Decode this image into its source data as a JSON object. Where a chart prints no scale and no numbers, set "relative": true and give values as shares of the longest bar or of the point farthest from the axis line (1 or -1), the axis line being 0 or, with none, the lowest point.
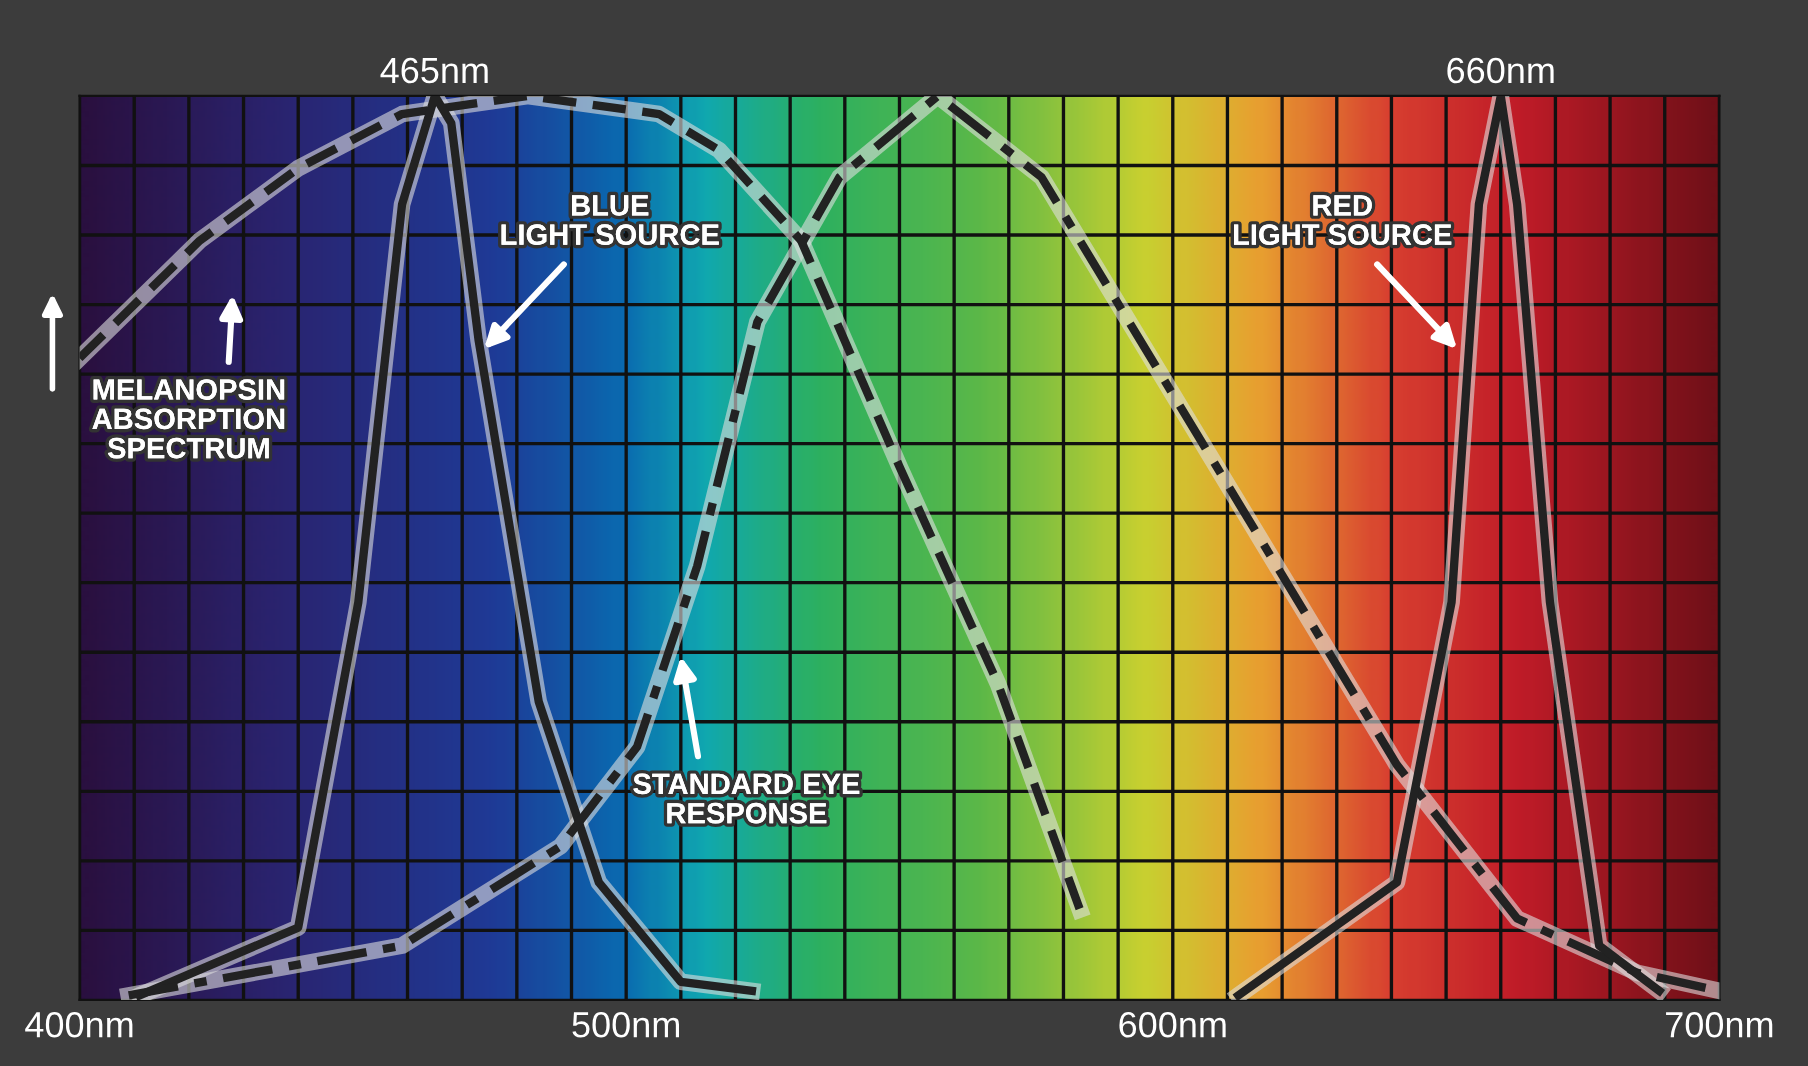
{
  "chart_data": {
    "type": "line",
    "relative": true,
    "xlim": [
      400,
      700
    ],
    "xticks": [
      {
        "value": 400,
        "label": "400nm"
      },
      {
        "value": 410,
        "label": null
      },
      {
        "value": 420,
        "label": null
      },
      {
        "value": 430,
        "label": null
      },
      {
        "value": 440,
        "label": null
      },
      {
        "value": 450,
        "label": null
      },
      {
        "value": 460,
        "label": null
      },
      {
        "value": 470,
        "label": null
      },
      {
        "value": 480,
        "label": null
      },
      {
        "value": 490,
        "label": null
      },
      {
        "value": 500,
        "label": "500nm"
      },
      {
        "value": 510,
        "label": null
      },
      {
        "value": 520,
        "label": null
      },
      {
        "value": 530,
        "label": null
      },
      {
        "value": 540,
        "label": null
      },
      {
        "value": 550,
        "label": null
      },
      {
        "value": 560,
        "label": null
      },
      {
        "value": 570,
        "label": null
      },
      {
        "value": 580,
        "label": null
      },
      {
        "value": 590,
        "label": null
      },
      {
        "value": 600,
        "label": "600nm"
      },
      {
        "value": 610,
        "label": null
      },
      {
        "value": 620,
        "label": null
      },
      {
        "value": 630,
        "label": null
      },
      {
        "value": 640,
        "label": null
      },
      {
        "value": 650,
        "label": null
      },
      {
        "value": 660,
        "label": null
      },
      {
        "value": 670,
        "label": null
      },
      {
        "value": 680,
        "label": null
      },
      {
        "value": 690,
        "label": null
      },
      {
        "value": 700,
        "label": "700nm"
      }
    ],
    "x2lim": [
      400,
      700
    ],
    "x2ticks": [
      {
        "value": 465,
        "label": "465nm"
      },
      {
        "value": 660,
        "label": "660nm"
      }
    ],
    "grid": true,
    "legend": false,
    "series": [
      {
        "name": "MELANOPSIN\nABSORPTION\nSPECTRUM",
        "color": "#222222",
        "line_style": "dashed",
        "x": [
          400,
          422,
          440,
          459,
          482,
          506,
          517,
          532,
          550,
          568,
          583
        ],
        "values": [
          0.71,
          0.84,
          0.92,
          0.98,
          1.0,
          0.98,
          0.94,
          0.84,
          0.59,
          0.35,
          0.1
        ]
      },
      {
        "name": "BLUE\nLIGHT SOURCE",
        "color": "#222222",
        "line_style": "solid",
        "x": [
          411,
          440,
          451,
          459,
          465,
          468,
          473,
          484,
          495,
          510,
          523
        ],
        "values": [
          0.005,
          0.08,
          0.44,
          0.88,
          1.0,
          0.97,
          0.73,
          0.33,
          0.13,
          0.02,
          0.01
        ]
      },
      {
        "name": "STANDARD EYE\nRESPONSE",
        "color": "#222222",
        "line_style": "dashdot",
        "x": [
          409,
          459,
          488,
          502,
          513,
          524,
          539,
          557,
          576,
          605,
          623,
          641,
          663,
          685,
          700
        ],
        "values": [
          0.005,
          0.06,
          0.17,
          0.28,
          0.48,
          0.75,
          0.91,
          1.0,
          0.91,
          0.62,
          0.44,
          0.26,
          0.09,
          0.03,
          0.01
        ]
      },
      {
        "name": "RED\nLIGHT SOURCE",
        "color": "#222222",
        "line_style": "solid",
        "x": [
          612,
          641,
          651,
          656,
          660,
          663,
          669,
          678,
          689
        ],
        "values": [
          0.005,
          0.13,
          0.44,
          0.88,
          1.0,
          0.88,
          0.44,
          0.06,
          0.01
        ]
      }
    ]
  }
}
